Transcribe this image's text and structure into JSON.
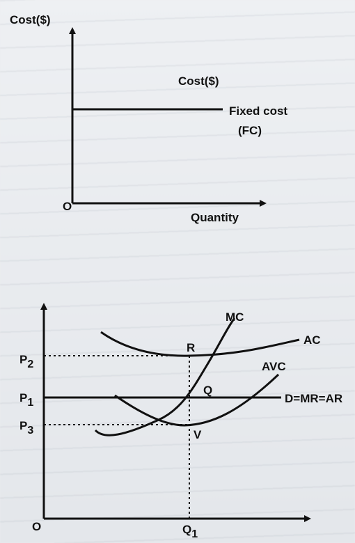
{
  "top_diagram": {
    "y_axis_label": "Cost($)",
    "inner_label": "Cost($)",
    "curve_label_line1": "Fixed cost",
    "curve_label_line2": "(FC)",
    "origin_label": "O",
    "x_axis_label": "Quantity"
  },
  "bottom_diagram": {
    "curves": {
      "mc": "MC",
      "ac": "AC",
      "avc": "AVC",
      "demand": "D=MR=AR"
    },
    "points": {
      "r": "R",
      "q": "Q",
      "v": "V"
    },
    "price_levels": {
      "p2": {
        "letter": "P",
        "sub": "2"
      },
      "p1": {
        "letter": "P",
        "sub": "1"
      },
      "p3": {
        "letter": "P",
        "sub": "3"
      }
    },
    "quantity": {
      "letter": "Q",
      "sub": "1"
    },
    "origin_label": "O"
  },
  "colors": {
    "ink": "#111111",
    "background": "#e9ebee"
  }
}
